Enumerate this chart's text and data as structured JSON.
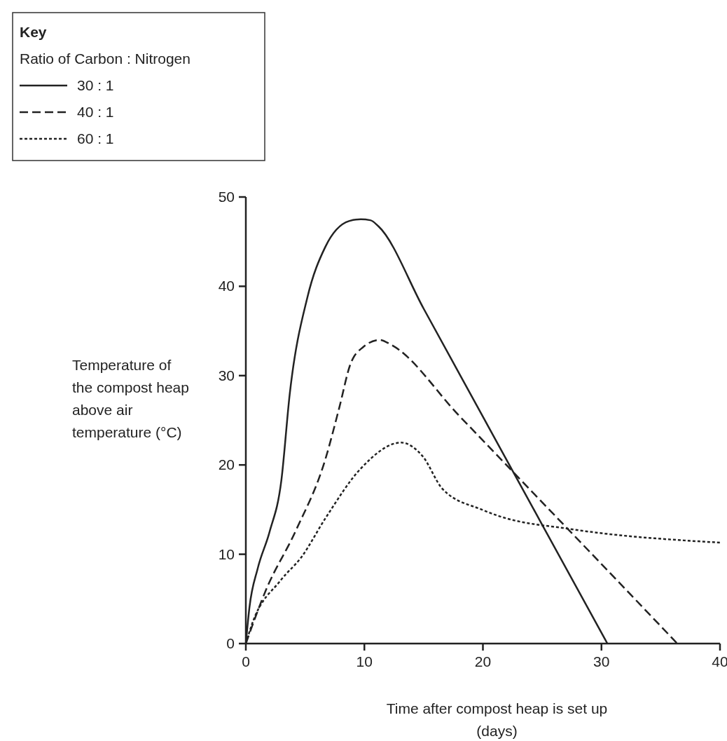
{
  "chart_data": {
    "type": "line",
    "xlabel": "Time after compost heap is set up (days)",
    "ylabel": "Temperature of the compost heap above air temperature (°C)",
    "legend_title": "Key",
    "annotations": [
      "Ratio of Carbon : Nitrogen"
    ],
    "legend": "top left",
    "xlim": [
      0,
      40
    ],
    "ylim": [
      0,
      50
    ],
    "xticks": [
      0,
      10,
      20,
      30,
      40
    ],
    "yticks": [
      0,
      10,
      20,
      30,
      40,
      50
    ],
    "grid": false,
    "series": [
      {
        "name": "30 : 1",
        "color": "#222222",
        "line_style": "solid",
        "x": [
          0,
          0.3,
          1,
          2,
          3,
          3.7,
          5.2,
          6.7,
          8.7,
          9.7,
          10.5,
          11.2,
          15,
          20,
          25,
          30.5
        ],
        "values": [
          0,
          4,
          8.4,
          12.5,
          18.3,
          27.9,
          38.8,
          44.4,
          47.3,
          47.5,
          47.4,
          46.7,
          37.5,
          25.4,
          13.3,
          0
        ]
      },
      {
        "name": "40 : 1",
        "color": "#222222",
        "line_style": "dashed",
        "x": [
          0,
          1.7,
          4.2,
          6.7,
          7.9,
          8.8,
          9.9,
          11.3,
          12.2,
          18,
          24,
          30,
          36.4
        ],
        "values": [
          0,
          6,
          12.6,
          20.6,
          26.5,
          31.2,
          33.2,
          34,
          33.5,
          25.5,
          17.2,
          8.9,
          0
        ]
      },
      {
        "name": "60 : 1",
        "color": "#222222",
        "line_style": "dotted",
        "x": [
          0,
          0.5,
          2.95,
          4.7,
          6.7,
          9.7,
          13.1,
          14.9,
          16.6,
          19.9,
          21.3,
          27.5,
          40
        ],
        "values": [
          0,
          2.1,
          7.1,
          9.7,
          14,
          19.6,
          22.5,
          21,
          17.3,
          15,
          14.3,
          12.8,
          11.3
        ]
      }
    ]
  }
}
